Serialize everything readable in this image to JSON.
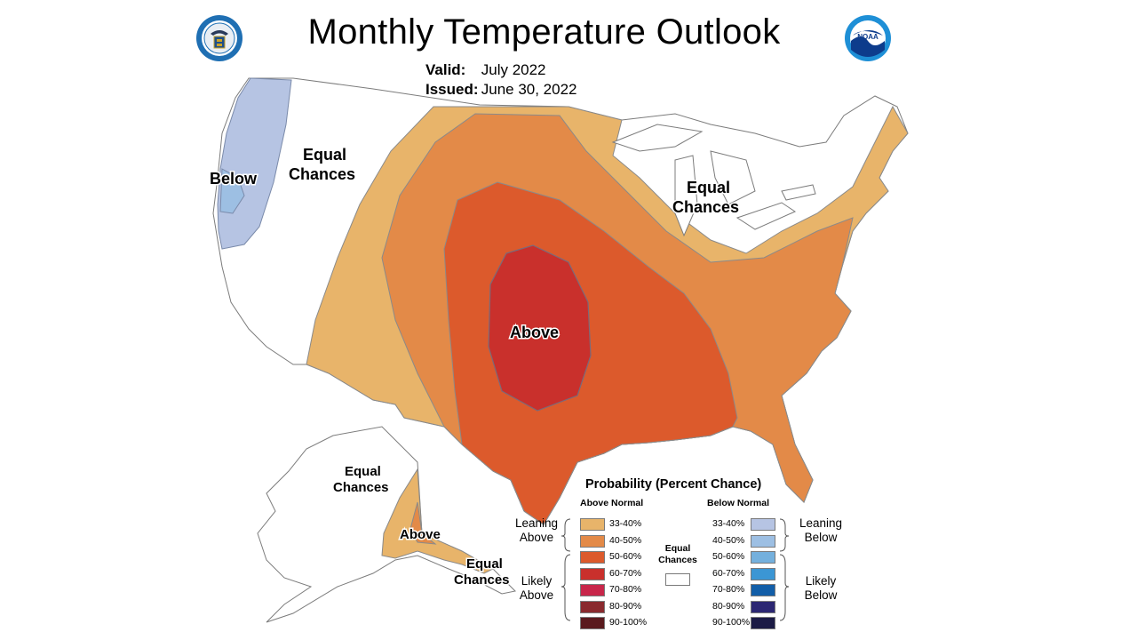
{
  "header": {
    "title": "Monthly Temperature Outlook",
    "valid_label": "Valid:",
    "valid_value": "July 2022",
    "issued_label": "Issued:",
    "issued_value": "June 30, 2022"
  },
  "logos": {
    "left": "us-department-of-commerce-seal",
    "right": "noaa-logo"
  },
  "map_labels": {
    "below": "Below",
    "equal_west_1": "Equal",
    "equal_west_2": "Chances",
    "equal_lakes_1": "Equal",
    "equal_lakes_2": "Chances",
    "above": "Above",
    "ak_equal_1": "Equal",
    "ak_equal_2": "Chances",
    "ak_above": "Above",
    "ak_equal_s_1": "Equal",
    "ak_equal_s_2": "Chances"
  },
  "legend": {
    "title": "Probability (Percent Chance)",
    "above_header": "Above Normal",
    "below_header": "Below Normal",
    "equal_label_1": "Equal",
    "equal_label_2": "Chances",
    "leaning_above_1": "Leaning",
    "leaning_above_2": "Above",
    "likely_above_1": "Likely",
    "likely_above_2": "Above",
    "leaning_below_1": "Leaning",
    "leaning_below_2": "Below",
    "likely_below_1": "Likely",
    "likely_below_2": "Below",
    "above": [
      {
        "label": "33-40%",
        "color": "#e8b46a"
      },
      {
        "label": "40-50%",
        "color": "#e38a48"
      },
      {
        "label": "50-60%",
        "color": "#dc5a2c"
      },
      {
        "label": "60-70%",
        "color": "#c9302c"
      },
      {
        "label": "70-80%",
        "color": "#c8264a"
      },
      {
        "label": "80-90%",
        "color": "#8a2a2e"
      },
      {
        "label": "90-100%",
        "color": "#5a1a1e"
      }
    ],
    "below": [
      {
        "label": "33-40%",
        "color": "#b6c4e3"
      },
      {
        "label": "40-50%",
        "color": "#9dbfe3"
      },
      {
        "label": "50-60%",
        "color": "#74b0dd"
      },
      {
        "label": "60-70%",
        "color": "#3b96d4"
      },
      {
        "label": "70-80%",
        "color": "#125ea8"
      },
      {
        "label": "80-90%",
        "color": "#2c2773"
      },
      {
        "label": "90-100%",
        "color": "#1c1b45"
      }
    ]
  }
}
